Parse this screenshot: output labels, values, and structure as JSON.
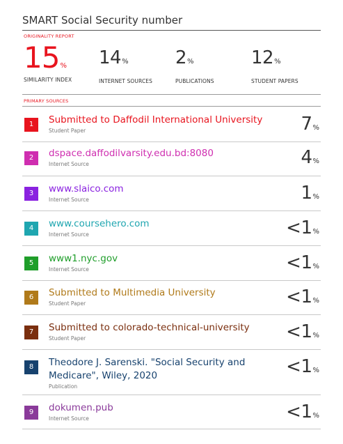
{
  "title": "SMART Social Security number",
  "originality_label": "ORIGINALITY REPORT",
  "stats": [
    {
      "value": "15",
      "unit": "%",
      "label": "SIMILARITY INDEX"
    },
    {
      "value": "14",
      "unit": "%",
      "label": "INTERNET SOURCES"
    },
    {
      "value": "2",
      "unit": "%",
      "label": "PUBLICATIONS"
    },
    {
      "value": "12",
      "unit": "%",
      "label": "STUDENT PAPERS"
    }
  ],
  "primary_label": "PRIMARY SOURCES",
  "sources": [
    {
      "num": "1",
      "name": "Submitted to Daffodil International University",
      "type": "Student Paper",
      "pct": "7",
      "unit": "%",
      "color": "#e8141e"
    },
    {
      "num": "2",
      "name": "dspace.daffodilvarsity.edu.bd:8080",
      "type": "Internet Source",
      "pct": "4",
      "unit": "%",
      "color": "#cf2eb0"
    },
    {
      "num": "3",
      "name": "www.slaico.com",
      "type": "Internet Source",
      "pct": "1",
      "unit": "%",
      "color": "#8a22e0"
    },
    {
      "num": "4",
      "name": "www.coursehero.com",
      "type": "Internet Source",
      "pct": "<1",
      "unit": "%",
      "color": "#1fa6b0"
    },
    {
      "num": "5",
      "name": "www1.nyc.gov",
      "type": "Internet Source",
      "pct": "<1",
      "unit": "%",
      "color": "#1f9e2a"
    },
    {
      "num": "6",
      "name": "Submitted to Multimedia University",
      "type": "Student Paper",
      "pct": "<1",
      "unit": "%",
      "color": "#b07a1a"
    },
    {
      "num": "7",
      "name": "Submitted to colorado-technical-university",
      "type": "Student Paper",
      "pct": "<1",
      "unit": "%",
      "color": "#7a2e0e"
    },
    {
      "num": "8",
      "name": "Theodore J. Sarenski. \"Social Security and",
      "name2": "Medicare\", Wiley, 2020",
      "type": "Publication",
      "pct": "<1",
      "unit": "%",
      "color": "#17426e"
    },
    {
      "num": "9",
      "name": "dokumen.pub",
      "type": "Internet Source",
      "pct": "<1",
      "unit": "%",
      "color": "#8a3a9a"
    }
  ]
}
